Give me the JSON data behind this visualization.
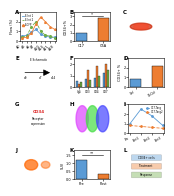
{
  "panel_a": {
    "x": [
      0,
      1,
      2,
      3,
      4,
      5,
      6,
      7
    ],
    "x_labels": [
      "d0",
      "d3",
      "d5",
      "d7",
      "d10",
      "d14",
      "d21",
      "d28"
    ],
    "series": [
      {
        "label": "E-Integrin 1",
        "values": [
          0.5,
          0.6,
          0.9,
          1.2,
          0.7,
          0.5,
          0.4,
          0.4
        ],
        "color": "#5b9bd5",
        "style": "-",
        "marker": "o"
      },
      {
        "label": "E-Integrin 2",
        "values": [
          0.4,
          0.5,
          1.5,
          2.0,
          1.0,
          0.6,
          0.5,
          0.3
        ],
        "color": "#70ad47",
        "style": "--",
        "marker": "o"
      },
      {
        "label": "E-GFP/Ctrl",
        "values": [
          0.3,
          0.4,
          0.8,
          1.8,
          2.5,
          2.0,
          1.5,
          1.2
        ],
        "color": "#ed7d31",
        "style": "-",
        "marker": "^"
      }
    ],
    "ylabel": "Flow Cytometry",
    "xlabel": "",
    "ylim": [
      0,
      3.0
    ],
    "title": "A"
  },
  "background_color": "#ffffff"
}
